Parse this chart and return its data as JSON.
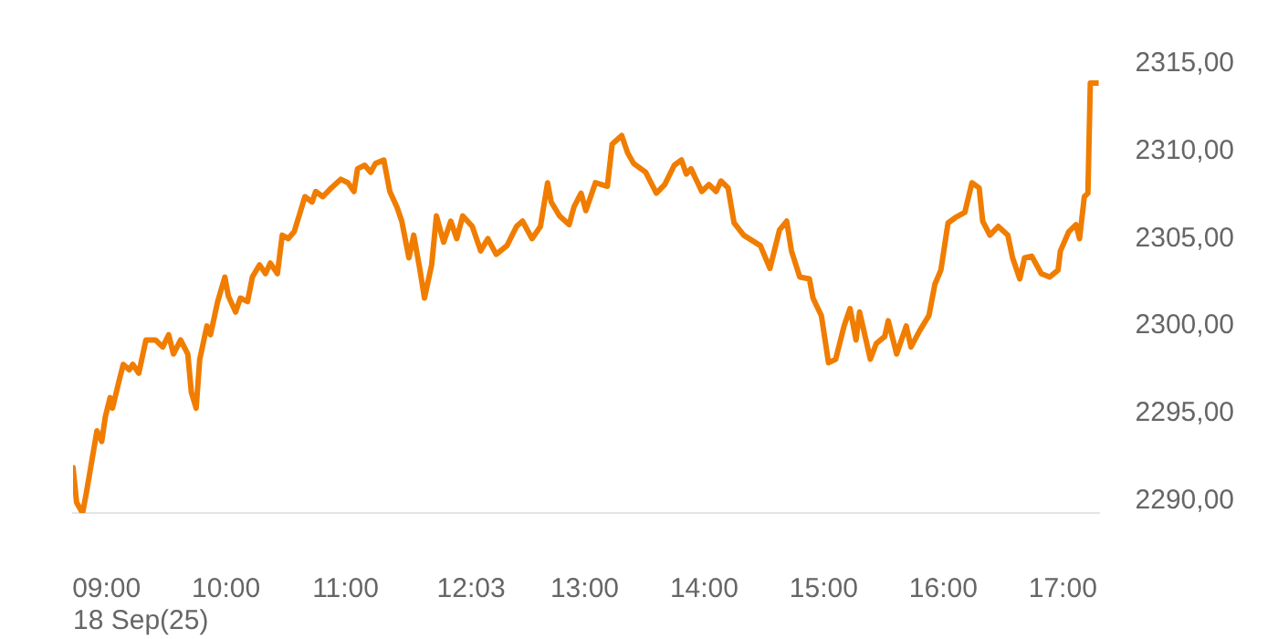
{
  "chart_data": {
    "type": "line",
    "x": [
      8.72,
      8.75,
      8.8,
      8.83,
      8.89,
      8.92,
      8.96,
      8.99,
      9.03,
      9.05,
      9.11,
      9.14,
      9.19,
      9.22,
      9.27,
      9.33,
      9.41,
      9.47,
      9.52,
      9.56,
      9.62,
      9.68,
      9.71,
      9.75,
      9.78,
      9.84,
      9.87,
      9.93,
      9.99,
      10.02,
      10.08,
      10.12,
      10.18,
      10.22,
      10.28,
      10.33,
      10.37,
      10.43,
      10.47,
      10.52,
      10.57,
      10.62,
      10.66,
      10.72,
      10.75,
      10.81,
      10.88,
      10.96,
      11.02,
      11.07,
      11.1,
      11.16,
      11.21,
      11.25,
      11.32,
      11.37,
      11.43,
      11.47,
      11.53,
      11.57,
      11.62,
      11.66,
      11.72,
      11.76,
      11.82,
      11.88,
      11.93,
      11.98,
      12.06,
      12.13,
      12.19,
      12.26,
      12.35,
      12.43,
      12.48,
      12.56,
      12.63,
      12.69,
      12.72,
      12.79,
      12.87,
      12.91,
      12.97,
      13.01,
      13.09,
      13.19,
      13.23,
      13.31,
      13.36,
      13.41,
      13.51,
      13.6,
      13.67,
      13.75,
      13.81,
      13.85,
      13.89,
      13.98,
      14.04,
      14.1,
      14.14,
      14.2,
      14.25,
      14.33,
      14.47,
      14.55,
      14.63,
      14.69,
      14.73,
      14.8,
      14.88,
      14.91,
      14.98,
      15.04,
      15.1,
      15.17,
      15.22,
      15.27,
      15.3,
      15.39,
      15.44,
      15.51,
      15.54,
      15.61,
      15.69,
      15.73,
      15.8,
      15.88,
      15.93,
      15.98,
      16.04,
      16.1,
      16.18,
      16.24,
      16.3,
      16.33,
      16.39,
      16.46,
      16.54,
      16.58,
      16.64,
      16.68,
      16.74,
      16.82,
      16.89,
      16.96,
      16.98,
      17.05,
      17.11,
      17.14,
      17.18,
      17.21,
      17.23,
      17.3
    ],
    "series": [
      {
        "color": "#f07d00",
        "values": [
          2291.9,
          2289.9,
          2289.3,
          2290.4,
          2292.8,
          2294.0,
          2293.4,
          2294.8,
          2295.9,
          2295.3,
          2297.0,
          2297.8,
          2297.5,
          2297.8,
          2297.3,
          2299.2,
          2299.2,
          2298.8,
          2299.5,
          2298.4,
          2299.2,
          2298.4,
          2296.2,
          2295.3,
          2298.1,
          2300.0,
          2299.5,
          2301.4,
          2302.8,
          2301.7,
          2300.8,
          2301.6,
          2301.4,
          2302.8,
          2303.5,
          2303.0,
          2303.6,
          2303.0,
          2305.2,
          2305.0,
          2305.4,
          2306.5,
          2307.4,
          2307.1,
          2307.7,
          2307.4,
          2307.9,
          2308.4,
          2308.2,
          2307.7,
          2309.0,
          2309.2,
          2308.8,
          2309.3,
          2309.5,
          2307.7,
          2306.8,
          2306.0,
          2303.9,
          2305.2,
          2303.3,
          2301.6,
          2303.5,
          2306.3,
          2304.8,
          2306.0,
          2305.0,
          2306.3,
          2305.7,
          2304.3,
          2305.0,
          2304.1,
          2304.6,
          2305.7,
          2306.0,
          2305.0,
          2305.7,
          2308.2,
          2307.1,
          2306.3,
          2305.8,
          2306.8,
          2307.6,
          2306.6,
          2308.2,
          2308.0,
          2310.4,
          2310.9,
          2309.9,
          2309.3,
          2308.8,
          2307.6,
          2308.1,
          2309.2,
          2309.5,
          2308.7,
          2309.0,
          2307.7,
          2308.1,
          2307.7,
          2308.3,
          2307.9,
          2305.9,
          2305.2,
          2304.6,
          2303.3,
          2305.5,
          2306.0,
          2304.3,
          2302.8,
          2302.7,
          2301.6,
          2300.6,
          2297.9,
          2298.1,
          2300.0,
          2301.0,
          2299.2,
          2300.8,
          2298.1,
          2299.0,
          2299.4,
          2300.3,
          2298.4,
          2300.0,
          2298.8,
          2299.7,
          2300.6,
          2302.4,
          2303.2,
          2305.9,
          2306.2,
          2306.5,
          2308.2,
          2307.9,
          2306.0,
          2305.2,
          2305.7,
          2305.2,
          2303.9,
          2302.7,
          2303.9,
          2304.0,
          2303.0,
          2302.8,
          2303.2,
          2304.3,
          2305.4,
          2305.8,
          2305.0,
          2307.4,
          2307.6,
          2313.9,
          2313.9
        ]
      }
    ],
    "xticks": [
      {
        "value": 9,
        "label": "09:00"
      },
      {
        "value": 10,
        "label": "10:00"
      },
      {
        "value": 11,
        "label": "11:00"
      },
      {
        "value": 12.05,
        "label": "12:03"
      },
      {
        "value": 13,
        "label": "13:00"
      },
      {
        "value": 14,
        "label": "14:00"
      },
      {
        "value": 15,
        "label": "15:00"
      },
      {
        "value": 16,
        "label": "16:00"
      },
      {
        "value": 17,
        "label": "17:00"
      }
    ],
    "yticks": [
      {
        "value": 2290,
        "label": "2290,00"
      },
      {
        "value": 2295,
        "label": "2295,00"
      },
      {
        "value": 2300,
        "label": "2300,00"
      },
      {
        "value": 2305,
        "label": "2305,00"
      },
      {
        "value": 2310,
        "label": "2310,00"
      },
      {
        "value": 2315,
        "label": "2315,00"
      }
    ],
    "xlim": [
      8.72,
      17.3
    ],
    "ylim": [
      2289.3,
      2315
    ],
    "marker": "none",
    "line_style": "solid",
    "annotations": [
      "18 Sep(25)"
    ]
  }
}
